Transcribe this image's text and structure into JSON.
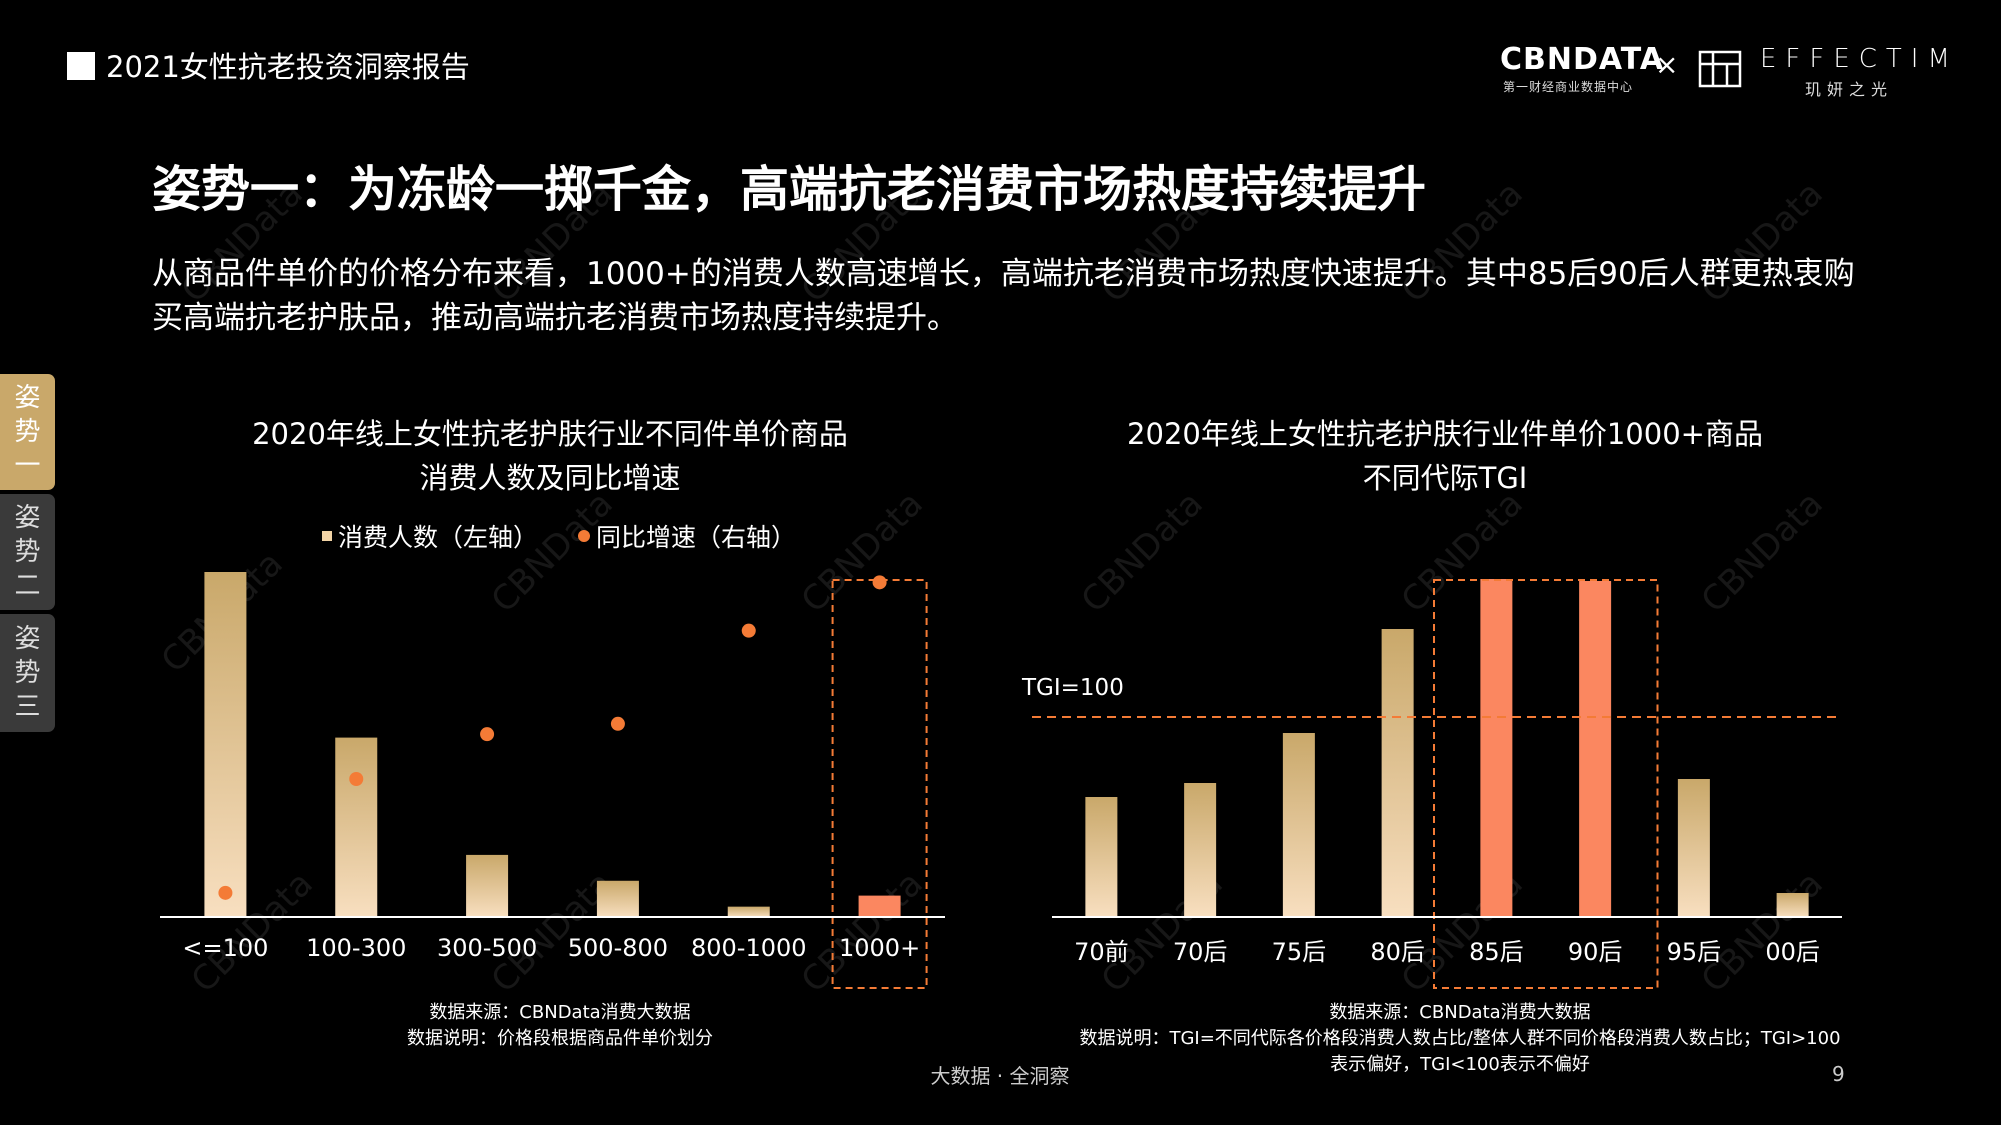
{
  "header": {
    "report_title": "2021女性抗老投资洞察报告",
    "brand_left": "CBNDATA",
    "brand_left_sub": "第一财经商业数据中心",
    "brand_separator": "×",
    "brand_right": "EFFECTIM",
    "brand_right_sub": "玑妍之光"
  },
  "headline": "姿势一：为冻龄一掷千金，高端抗老消费市场热度持续提升",
  "intro": "从商品件单价的价格分布来看，1000+的消费人数高速增长，高端抗老消费市场热度快速提升。其中85后90后人群更热衷购买高端抗老护肤品，推动高端抗老消费市场热度持续提升。",
  "side_tabs": [
    {
      "label": "姿势一",
      "active": true
    },
    {
      "label": "姿势二",
      "active": false
    },
    {
      "label": "姿势三",
      "active": false
    }
  ],
  "watermark": "CBNData",
  "colors": {
    "bar_top": "#c9a86a",
    "bar_bottom": "#f8dfc0",
    "highlight": "#fb8760",
    "dot": "#f47b36",
    "dashed": "#f47b36",
    "active_tab": "#c9a86a"
  },
  "chart_data": [
    {
      "type": "bar",
      "title": "2020年线上女性抗老护肤行业不同件单价商品消费人数及同比增速",
      "title_lines": [
        "2020年线上女性抗老护肤行业不同件单价商品",
        "消费人数及同比增速"
      ],
      "categories": [
        "<=100",
        "100-300",
        "300-500",
        "500-800",
        "800-1000",
        "1000+"
      ],
      "legend": [
        "消费人数（左轴）",
        "同比增速（右轴）"
      ],
      "legend_placement": "top-center",
      "series": [
        {
          "name": "消费人数（左轴）",
          "axis": "left",
          "values": [
            100,
            52,
            18,
            10.5,
            3,
            6.2
          ]
        },
        {
          "name": "同比增速（右轴）",
          "axis": "right",
          "values": [
            7,
            40,
            53,
            56,
            83,
            97
          ]
        }
      ],
      "ylim_left": [
        0,
        100
      ],
      "ylim_right": [
        0,
        100
      ],
      "axes_numbers_shown": false,
      "highlight_category": "1000+",
      "notes": [
        "数据来源：CBNData消费大数据",
        "数据说明：价格段根据商品件单价划分"
      ]
    },
    {
      "type": "bar",
      "title": "2020年线上女性抗老护肤行业件单价1000+商品不同代际TGI",
      "title_lines": [
        "2020年线上女性抗老护肤行业件单价1000+商品",
        "不同代际TGI"
      ],
      "categories": [
        "70前",
        "70后",
        "75后",
        "80后",
        "85后",
        "90后",
        "95后",
        "00后"
      ],
      "values": [
        60,
        67,
        92,
        144,
        169,
        168,
        69,
        12
      ],
      "reference_line": {
        "label": "TGI=100",
        "value": 100
      },
      "highlight_categories": [
        "85后",
        "90后"
      ],
      "ylim": [
        0,
        180
      ],
      "axes_numbers_shown": false,
      "notes": [
        "数据来源：CBNData消费大数据",
        "数据说明：TGI=不同代际各价格段消费人数占比/整体人群不同价格段消费人数占比；TGI>100",
        "表示偏好，TGI<100表示不偏好"
      ]
    }
  ],
  "footer": {
    "slogan": "大数据 · 全洞察",
    "page_number": "9"
  }
}
